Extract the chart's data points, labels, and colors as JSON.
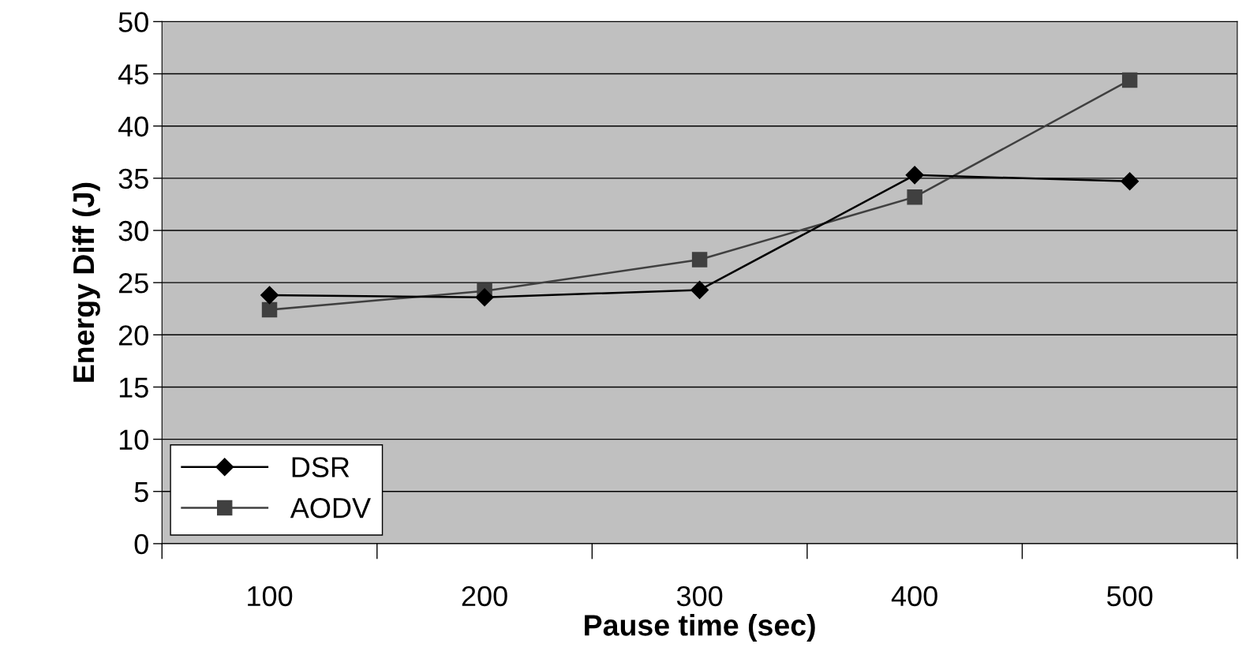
{
  "chart_data": {
    "type": "line",
    "xlabel": "Pause time (sec)",
    "ylabel": "Energy Diff (J)",
    "categories": [
      "100",
      "200",
      "300",
      "400",
      "500"
    ],
    "series": [
      {
        "name": "DSR",
        "color": "#000000",
        "marker": "diamond",
        "values": [
          23.8,
          23.6,
          24.3,
          35.3,
          34.7
        ]
      },
      {
        "name": "AODV",
        "color": "#404040",
        "marker": "square",
        "values": [
          22.4,
          24.2,
          27.2,
          33.2,
          44.4
        ]
      }
    ],
    "ylim": [
      0,
      50
    ],
    "yticks": [
      0,
      5,
      10,
      15,
      20,
      25,
      30,
      35,
      40,
      45,
      50
    ],
    "grid": "y",
    "legend": "bottom left",
    "line_style": "solid"
  }
}
